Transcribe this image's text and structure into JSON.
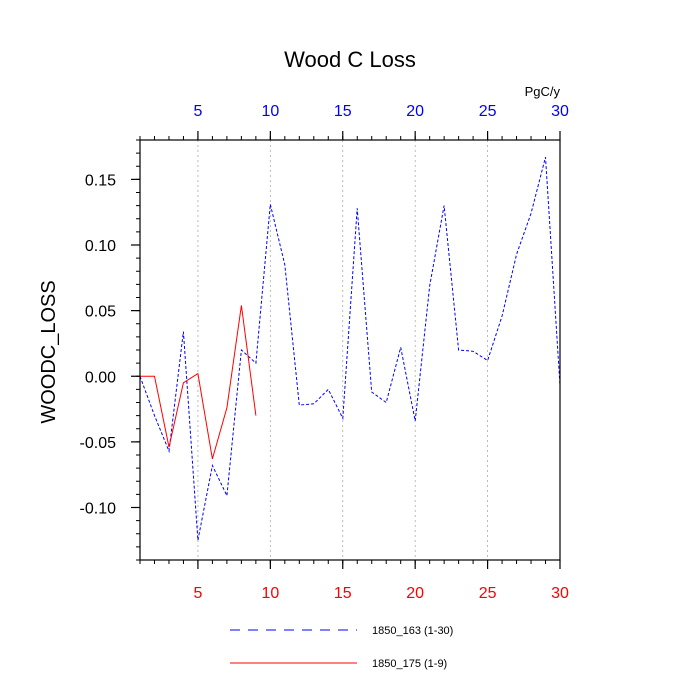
{
  "chart_data": {
    "type": "line",
    "title": "Wood C Loss",
    "ylabel": "WOODC_LOSS",
    "units_label": "PgC/y",
    "xlim": [
      1,
      30
    ],
    "ylim": [
      -0.14,
      0.18
    ],
    "yticks": [
      -0.1,
      -0.05,
      0.0,
      0.05,
      0.1,
      0.15
    ],
    "ytick_labels": [
      "-0.10",
      "-0.05",
      "0.00",
      "0.05",
      "0.10",
      "0.15"
    ],
    "xticks_bottom": [
      5,
      10,
      15,
      20,
      25,
      30
    ],
    "xticks_bottom_labels": [
      "5",
      "10",
      "15",
      "20",
      "25",
      "30"
    ],
    "xticks_top": [
      5,
      10,
      15,
      20,
      25,
      30
    ],
    "xticks_top_labels": [
      "5",
      "10",
      "15",
      "20",
      "25",
      "30"
    ],
    "grid_x": true,
    "legend_position": "bottom",
    "series": [
      {
        "name": "1850_163 (1-30)",
        "color": "#0000ff",
        "style": "dashed",
        "x": [
          1,
          2,
          3,
          4,
          5,
          6,
          7,
          8,
          9,
          10,
          11,
          12,
          13,
          14,
          15,
          16,
          17,
          18,
          19,
          20,
          21,
          22,
          23,
          24,
          25,
          26,
          27,
          28,
          29,
          30
        ],
        "y": [
          0.0,
          -0.03,
          -0.057,
          0.034,
          -0.125,
          -0.068,
          -0.091,
          0.02,
          0.01,
          0.131,
          0.085,
          -0.022,
          -0.021,
          -0.01,
          -0.032,
          0.128,
          -0.012,
          -0.02,
          0.022,
          -0.034,
          0.069,
          0.13,
          0.02,
          0.019,
          0.012,
          0.046,
          0.093,
          0.124,
          0.167,
          -0.007
        ]
      },
      {
        "name": "1850_175 (1-9)",
        "color": "#ff0000",
        "style": "solid",
        "x": [
          1,
          2,
          3,
          4,
          5,
          6,
          7,
          8,
          9
        ],
        "y": [
          0.0,
          0.0,
          -0.054,
          -0.005,
          0.002,
          -0.063,
          -0.024,
          0.054,
          -0.03
        ]
      }
    ]
  }
}
